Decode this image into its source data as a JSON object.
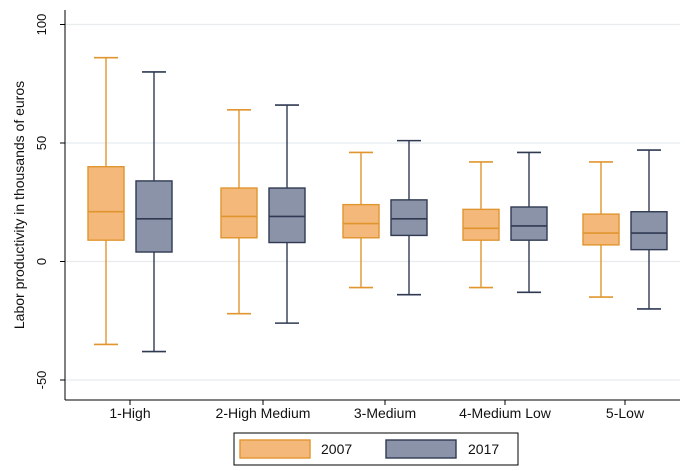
{
  "chart_data": {
    "type": "boxplot",
    "title": "",
    "xlabel": "",
    "ylabel": "Labor productivity in thousands of euros",
    "ylim": [
      -55,
      102
    ],
    "yticks": [
      -50,
      0,
      50,
      100
    ],
    "grid": "horizontal",
    "legend_position": "bottom",
    "categories": [
      "1-High",
      "2-High Medium",
      "3-Medium",
      "4-Medium Low",
      "5-Low"
    ],
    "series": [
      {
        "name": "2007",
        "color": "#F4B97A",
        "stroke": "#E0952F",
        "boxes": [
          {
            "whisker_low": -35,
            "q1": 9,
            "median": 21,
            "q3": 40,
            "whisker_high": 86
          },
          {
            "whisker_low": -22,
            "q1": 10,
            "median": 19,
            "q3": 31,
            "whisker_high": 64
          },
          {
            "whisker_low": -11,
            "q1": 10,
            "median": 16,
            "q3": 24,
            "whisker_high": 46
          },
          {
            "whisker_low": -11,
            "q1": 9,
            "median": 14,
            "q3": 22,
            "whisker_high": 42
          },
          {
            "whisker_low": -15,
            "q1": 7,
            "median": 12,
            "q3": 20,
            "whisker_high": 42
          }
        ]
      },
      {
        "name": "2017",
        "color": "#8A93A8",
        "stroke": "#2F3A52",
        "boxes": [
          {
            "whisker_low": -38,
            "q1": 4,
            "median": 18,
            "q3": 34,
            "whisker_high": 80
          },
          {
            "whisker_low": -26,
            "q1": 8,
            "median": 19,
            "q3": 31,
            "whisker_high": 66
          },
          {
            "whisker_low": -14,
            "q1": 11,
            "median": 18,
            "q3": 26,
            "whisker_high": 51
          },
          {
            "whisker_low": -13,
            "q1": 9,
            "median": 15,
            "q3": 23,
            "whisker_high": 46
          },
          {
            "whisker_low": -20,
            "q1": 5,
            "median": 12,
            "q3": 21,
            "whisker_high": 47
          }
        ]
      }
    ]
  }
}
